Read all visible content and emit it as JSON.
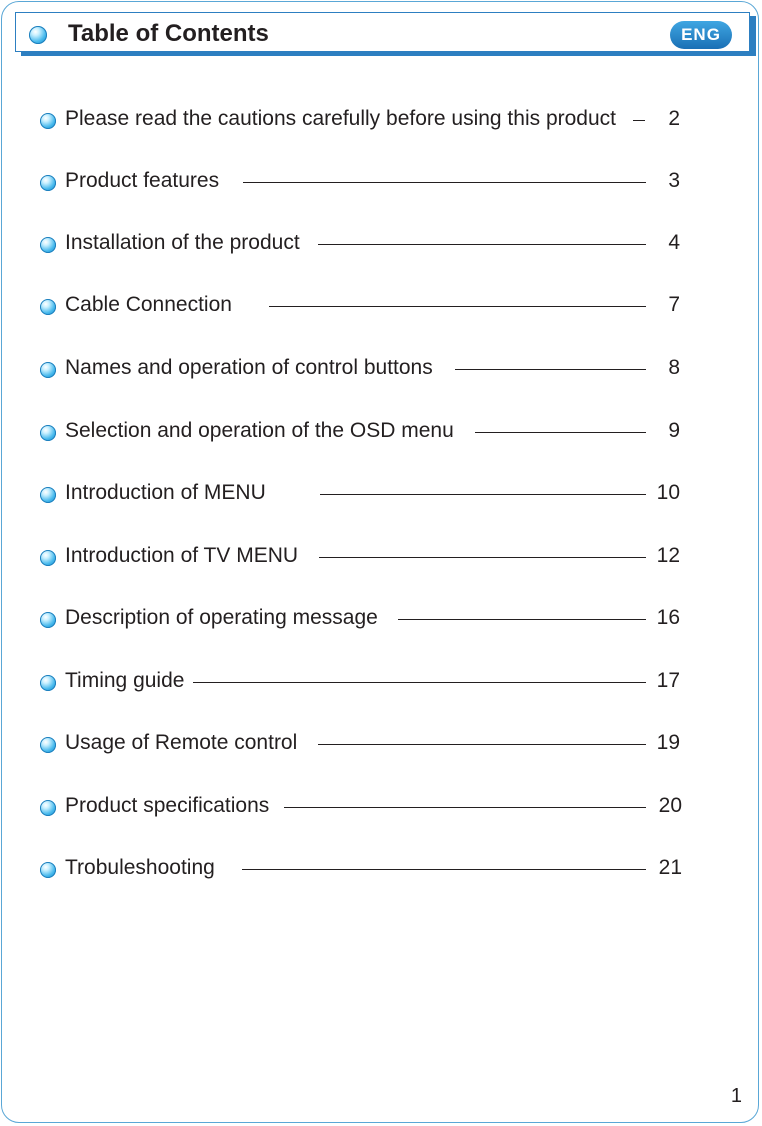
{
  "header": {
    "title": "Table of Contents",
    "language_badge": "ENG"
  },
  "toc": [
    {
      "label": "Please read the cautions carefully before using this product",
      "page": "2"
    },
    {
      "label": "Product features",
      "page": "3"
    },
    {
      "label": "Installation of the product",
      "page": "4"
    },
    {
      "label": "Cable Connection",
      "page": "7"
    },
    {
      "label": "Names and operation of control buttons",
      "page": "8"
    },
    {
      "label": "Selection and operation of the OSD menu",
      "page": "9"
    },
    {
      "label": "Introduction of MENU",
      "page": "10"
    },
    {
      "label": "Introduction of TV MENU",
      "page": "12"
    },
    {
      "label": "Description of operating message",
      "page": "16"
    },
    {
      "label": "Timing guide",
      "page": "17"
    },
    {
      "label": "Usage of Remote control",
      "page": "19"
    },
    {
      "label": "Product specifications",
      "page": "20"
    },
    {
      "label": "Trobuleshooting",
      "page": "21"
    }
  ],
  "footer": {
    "page_number": "1"
  },
  "colors": {
    "accent": "#2d7fc1",
    "bullet": "#45b8ec",
    "text": "#231f20"
  }
}
